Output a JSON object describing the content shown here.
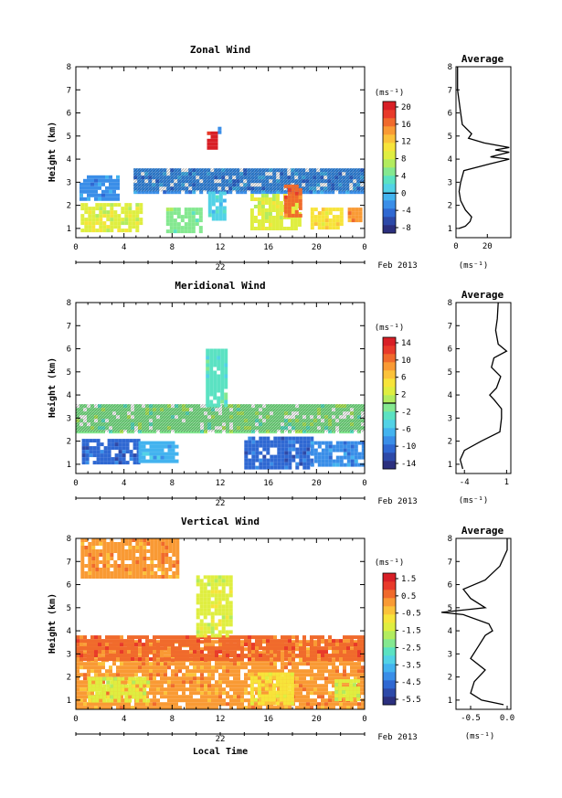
{
  "colormap": [
    "#2b2f7e",
    "#2d49a8",
    "#2f68d2",
    "#3a8ee8",
    "#43b3ef",
    "#52d2e6",
    "#5be2c2",
    "#84e890",
    "#b2ec5e",
    "#dfee40",
    "#f7e43a",
    "#fbc23a",
    "#f99a34",
    "#f06a2c",
    "#e83a2a",
    "#d81f26"
  ],
  "date_label": "Feb 2013",
  "day_label": "22",
  "x_axis_label": "Local Time",
  "unit_label": "(ms⁻¹)",
  "panels": [
    {
      "title": "Zonal Wind",
      "ylabel": "Height (km)",
      "cb_unit": "(ms⁻¹)",
      "cb_ticks": [
        "20",
        "16",
        "12",
        "8",
        "4",
        "0",
        "-4",
        "-8"
      ],
      "cb_zero_index": 5,
      "avg_title": "Average",
      "avg_unit": "(ms⁻¹)",
      "avg_ticks": [
        "0",
        "20"
      ],
      "has_xlabel": false
    },
    {
      "title": "Meridional Wind",
      "ylabel": "Height (km)",
      "cb_unit": "(ms⁻¹)",
      "cb_ticks": [
        "14",
        "10",
        "6",
        "2",
        "-2",
        "-6",
        "-10",
        "-14"
      ],
      "cb_zero_index": 3.5,
      "avg_title": "Average",
      "avg_unit": "(ms⁻¹)",
      "avg_ticks": [
        "-4",
        "1"
      ],
      "has_xlabel": false
    },
    {
      "title": "Vertical Wind",
      "ylabel": "Height (km)",
      "cb_unit": "(ms⁻¹)",
      "cb_ticks": [
        "1.5",
        "0.5",
        "-0.5",
        "-1.5",
        "-2.5",
        "-3.5",
        "-4.5",
        "-5.5"
      ],
      "cb_zero_index": -1,
      "avg_title": "Average",
      "avg_unit": "(ms⁻¹)",
      "avg_ticks": [
        "-0.5",
        "0.0"
      ],
      "has_xlabel": true
    }
  ],
  "chart_data": [
    {
      "type": "heatmap",
      "title": "Zonal Wind",
      "xlabel": "",
      "ylabel": "Height (km)",
      "x_ticks": [
        "0",
        "4",
        "8",
        "12",
        "16",
        "20",
        "0"
      ],
      "xlim": [
        0,
        24
      ],
      "y_ticks": [
        "1",
        "2",
        "3",
        "4",
        "5",
        "6",
        "7",
        "8"
      ],
      "ylim": [
        0.6,
        8.0
      ],
      "colorbar_range": [
        -10,
        22
      ],
      "regions": [
        {
          "x": [
            4.8,
            24
          ],
          "y": [
            2.6,
            3.6
          ],
          "value": -4,
          "hatched": true
        },
        {
          "x": [
            0.3,
            3.6
          ],
          "y": [
            2.2,
            3.3
          ],
          "value": -3,
          "hatched": false
        },
        {
          "x": [
            0.4,
            5.5
          ],
          "y": [
            0.9,
            2.1
          ],
          "value": 9,
          "hatched": false
        },
        {
          "x": [
            7.5,
            10.5
          ],
          "y": [
            0.9,
            1.9
          ],
          "value": 4,
          "hatched": false
        },
        {
          "x": [
            11.0,
            12.3
          ],
          "y": [
            1.4,
            2.6
          ],
          "value": 1,
          "hatched": false
        },
        {
          "x": [
            14.5,
            18.5
          ],
          "y": [
            1.0,
            2.5
          ],
          "value": 8,
          "hatched": false
        },
        {
          "x": [
            17.3,
            18.8
          ],
          "y": [
            1.5,
            2.9
          ],
          "value": 16,
          "hatched": false
        },
        {
          "x": [
            19.5,
            22.0
          ],
          "y": [
            1.0,
            1.9
          ],
          "value": 10,
          "hatched": false
        },
        {
          "x": [
            22.6,
            23.6
          ],
          "y": [
            1.3,
            1.9
          ],
          "value": 15,
          "hatched": false
        },
        {
          "x": [
            10.9,
            11.8
          ],
          "y": [
            4.5,
            5.2
          ],
          "value": 21,
          "hatched": false
        },
        {
          "x": [
            11.8,
            12.0
          ],
          "y": [
            5.1,
            5.4
          ],
          "value": -4,
          "hatched": false
        }
      ],
      "average_profile": {
        "xlim": [
          0,
          35
        ],
        "x_ticks": [
          0,
          20
        ],
        "points": [
          [
            2,
            1.0
          ],
          [
            6,
            1.1
          ],
          [
            9,
            1.3
          ],
          [
            10,
            1.5
          ],
          [
            6,
            1.8
          ],
          [
            3,
            2.2
          ],
          [
            2,
            2.6
          ],
          [
            3,
            3.0
          ],
          [
            5,
            3.5
          ],
          [
            22,
            3.8
          ],
          [
            34,
            4.0
          ],
          [
            22,
            4.1
          ],
          [
            34,
            4.3
          ],
          [
            25,
            4.4
          ],
          [
            34,
            4.5
          ],
          [
            18,
            4.7
          ],
          [
            8,
            4.9
          ],
          [
            10,
            5.1
          ],
          [
            4,
            5.5
          ],
          [
            3,
            6.0
          ],
          [
            2,
            6.5
          ],
          [
            1,
            7.0
          ],
          [
            1,
            7.5
          ],
          [
            1,
            8.0
          ]
        ]
      }
    },
    {
      "type": "heatmap",
      "title": "Meridional Wind",
      "xlabel": "",
      "ylabel": "Height (km)",
      "x_ticks": [
        "0",
        "4",
        "8",
        "12",
        "16",
        "20",
        "0"
      ],
      "xlim": [
        0,
        24
      ],
      "y_ticks": [
        "1",
        "2",
        "3",
        "4",
        "5",
        "6",
        "7",
        "8"
      ],
      "ylim": [
        0.6,
        8.0
      ],
      "colorbar_range": [
        -15,
        16
      ],
      "regions": [
        {
          "x": [
            0,
            24
          ],
          "y": [
            2.4,
            3.6
          ],
          "value": 0,
          "hatched": true
        },
        {
          "x": [
            0.5,
            5.2
          ],
          "y": [
            1.0,
            2.1
          ],
          "value": -10,
          "hatched": false
        },
        {
          "x": [
            5.2,
            8.5
          ],
          "y": [
            1.2,
            2.0
          ],
          "value": -7,
          "hatched": false
        },
        {
          "x": [
            14.0,
            19.5
          ],
          "y": [
            0.9,
            2.2
          ],
          "value": -11,
          "hatched": false
        },
        {
          "x": [
            19.5,
            24.0
          ],
          "y": [
            1.0,
            2.0
          ],
          "value": -8,
          "hatched": false
        },
        {
          "x": [
            10.8,
            12.5
          ],
          "y": [
            3.6,
            6.0
          ],
          "value": -2,
          "hatched": false
        }
      ],
      "average_profile": {
        "xlim": [
          -5,
          1.5
        ],
        "x_ticks": [
          -4,
          1
        ],
        "points": [
          [
            -4.2,
            0.8
          ],
          [
            -4.5,
            1.2
          ],
          [
            -4.0,
            1.6
          ],
          [
            -2.0,
            2.0
          ],
          [
            0.2,
            2.4
          ],
          [
            0.4,
            3.0
          ],
          [
            0.4,
            3.4
          ],
          [
            -0.5,
            3.8
          ],
          [
            -1.0,
            4.0
          ],
          [
            -0.2,
            4.3
          ],
          [
            0.3,
            4.8
          ],
          [
            -0.8,
            5.2
          ],
          [
            -0.5,
            5.6
          ],
          [
            1.0,
            5.9
          ],
          [
            0.0,
            6.2
          ],
          [
            -0.3,
            6.8
          ],
          [
            -0.1,
            7.3
          ],
          [
            0.0,
            8.0
          ]
        ]
      }
    },
    {
      "type": "heatmap",
      "title": "Vertical Wind",
      "xlabel": "Local Time",
      "ylabel": "Height (km)",
      "x_ticks": [
        "0",
        "4",
        "8",
        "12",
        "16",
        "20",
        "0"
      ],
      "xlim": [
        0,
        24
      ],
      "y_ticks": [
        "1",
        "2",
        "3",
        "4",
        "5",
        "6",
        "7",
        "8"
      ],
      "ylim": [
        0.6,
        8.0
      ],
      "colorbar_range": [
        -6.0,
        2.0
      ],
      "regions": [
        {
          "x": [
            0,
            24
          ],
          "y": [
            0.7,
            3.6
          ],
          "value": 0.3,
          "hatched": false
        },
        {
          "x": [
            0,
            24
          ],
          "y": [
            2.8,
            3.8
          ],
          "value": 0.6,
          "hatched": false
        },
        {
          "x": [
            1.0,
            6.0
          ],
          "y": [
            1.0,
            2.0
          ],
          "value": -1.2,
          "hatched": false
        },
        {
          "x": [
            14.5,
            18.0
          ],
          "y": [
            0.9,
            2.2
          ],
          "value": -1.0,
          "hatched": false
        },
        {
          "x": [
            21.5,
            23.5
          ],
          "y": [
            1.0,
            1.9
          ],
          "value": -1.3,
          "hatched": false
        },
        {
          "x": [
            10.0,
            13.0
          ],
          "y": [
            3.8,
            6.4
          ],
          "value": -1.1,
          "hatched": false
        },
        {
          "x": [
            0.4,
            8.5
          ],
          "y": [
            6.3,
            8.0
          ],
          "value": 0.4,
          "hatched": false
        }
      ],
      "average_profile": {
        "xlim": [
          -0.7,
          0.05
        ],
        "x_ticks": [
          -0.5,
          0.0
        ],
        "points": [
          [
            -0.05,
            0.8
          ],
          [
            -0.35,
            1.0
          ],
          [
            -0.5,
            1.3
          ],
          [
            -0.45,
            1.8
          ],
          [
            -0.3,
            2.3
          ],
          [
            -0.5,
            2.8
          ],
          [
            -0.4,
            3.3
          ],
          [
            -0.3,
            3.8
          ],
          [
            -0.2,
            4.0
          ],
          [
            -0.25,
            4.3
          ],
          [
            -0.6,
            4.7
          ],
          [
            -0.9,
            4.8
          ],
          [
            -0.3,
            5.0
          ],
          [
            -0.5,
            5.4
          ],
          [
            -0.6,
            5.8
          ],
          [
            -0.3,
            6.2
          ],
          [
            -0.1,
            6.8
          ],
          [
            0.0,
            7.5
          ],
          [
            0.0,
            8.0
          ]
        ]
      }
    }
  ]
}
